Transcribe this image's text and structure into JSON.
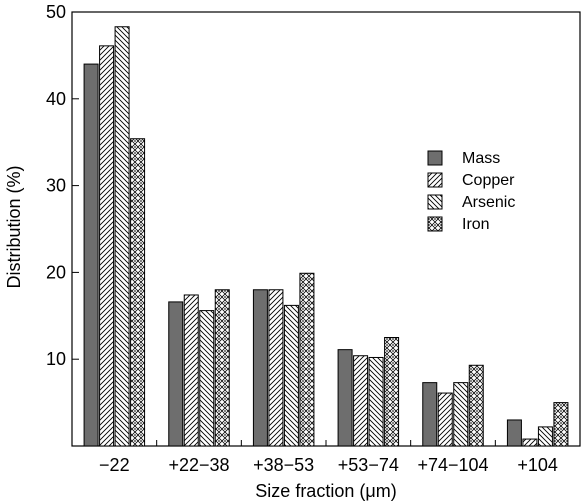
{
  "chart_data": {
    "type": "bar",
    "title": "",
    "xlabel": "Size fraction (μm)",
    "ylabel": "Distribution (%)",
    "ylim": [
      0,
      50
    ],
    "yticks": [
      10,
      20,
      30,
      40,
      50
    ],
    "categories": [
      "−22",
      "+22−38",
      "+38−53",
      "+53−74",
      "+74−104",
      "+104"
    ],
    "series": [
      {
        "name": "Mass",
        "values": [
          44.0,
          16.6,
          18.0,
          11.1,
          7.3,
          3.0
        ],
        "fill": "solid",
        "color": "#6e6e6e"
      },
      {
        "name": "Copper",
        "values": [
          46.1,
          17.4,
          18.0,
          10.4,
          6.1,
          0.8
        ],
        "fill": "hatch-forward"
      },
      {
        "name": "Arsenic",
        "values": [
          48.3,
          15.6,
          16.2,
          10.2,
          7.3,
          2.2
        ],
        "fill": "hatch-back"
      },
      {
        "name": "Iron",
        "values": [
          35.4,
          18.0,
          19.9,
          12.5,
          9.3,
          5.0
        ],
        "fill": "checker"
      }
    ],
    "legend_position": "right"
  }
}
